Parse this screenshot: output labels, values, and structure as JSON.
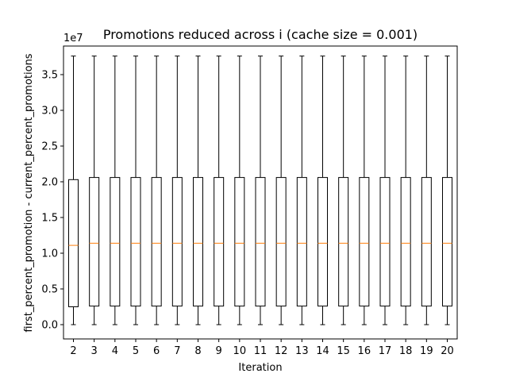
{
  "chart_data": {
    "type": "box",
    "title": "Promotions reduced across i (cache size = 0.001)",
    "xlabel": "Iteration",
    "ylabel": "first_percent_promotion - current_percent_promotions",
    "y_offset_label": "1e7",
    "ylim": [
      -0.2,
      3.9
    ],
    "yticks": [
      0.0,
      0.5,
      1.0,
      1.5,
      2.0,
      2.5,
      3.0,
      3.5
    ],
    "ytick_labels": [
      "0.0",
      "0.5",
      "1.0",
      "1.5",
      "2.0",
      "2.5",
      "3.0",
      "3.5"
    ],
    "grid": false,
    "median_color": "#ff7f0e",
    "box_color": "#000000",
    "categories": [
      "2",
      "3",
      "4",
      "5",
      "6",
      "7",
      "8",
      "9",
      "10",
      "11",
      "12",
      "13",
      "14",
      "15",
      "16",
      "17",
      "18",
      "19",
      "20"
    ],
    "boxes": [
      {
        "x": "2",
        "whisker_low": 0.0,
        "q1": 0.25,
        "median": 1.11,
        "q3": 2.03,
        "whisker_high": 3.76
      },
      {
        "x": "3",
        "whisker_low": 0.0,
        "q1": 0.26,
        "median": 1.14,
        "q3": 2.06,
        "whisker_high": 3.76
      },
      {
        "x": "4",
        "whisker_low": 0.0,
        "q1": 0.26,
        "median": 1.14,
        "q3": 2.06,
        "whisker_high": 3.76
      },
      {
        "x": "5",
        "whisker_low": 0.0,
        "q1": 0.26,
        "median": 1.14,
        "q3": 2.06,
        "whisker_high": 3.76
      },
      {
        "x": "6",
        "whisker_low": 0.0,
        "q1": 0.26,
        "median": 1.14,
        "q3": 2.06,
        "whisker_high": 3.76
      },
      {
        "x": "7",
        "whisker_low": 0.0,
        "q1": 0.26,
        "median": 1.14,
        "q3": 2.06,
        "whisker_high": 3.76
      },
      {
        "x": "8",
        "whisker_low": 0.0,
        "q1": 0.26,
        "median": 1.14,
        "q3": 2.06,
        "whisker_high": 3.76
      },
      {
        "x": "9",
        "whisker_low": 0.0,
        "q1": 0.26,
        "median": 1.14,
        "q3": 2.06,
        "whisker_high": 3.76
      },
      {
        "x": "10",
        "whisker_low": 0.0,
        "q1": 0.26,
        "median": 1.14,
        "q3": 2.06,
        "whisker_high": 3.76
      },
      {
        "x": "11",
        "whisker_low": 0.0,
        "q1": 0.26,
        "median": 1.14,
        "q3": 2.06,
        "whisker_high": 3.76
      },
      {
        "x": "12",
        "whisker_low": 0.0,
        "q1": 0.26,
        "median": 1.14,
        "q3": 2.06,
        "whisker_high": 3.76
      },
      {
        "x": "13",
        "whisker_low": 0.0,
        "q1": 0.26,
        "median": 1.14,
        "q3": 2.06,
        "whisker_high": 3.76
      },
      {
        "x": "14",
        "whisker_low": 0.0,
        "q1": 0.26,
        "median": 1.14,
        "q3": 2.06,
        "whisker_high": 3.76
      },
      {
        "x": "15",
        "whisker_low": 0.0,
        "q1": 0.26,
        "median": 1.14,
        "q3": 2.06,
        "whisker_high": 3.76
      },
      {
        "x": "16",
        "whisker_low": 0.0,
        "q1": 0.26,
        "median": 1.14,
        "q3": 2.06,
        "whisker_high": 3.76
      },
      {
        "x": "17",
        "whisker_low": 0.0,
        "q1": 0.26,
        "median": 1.14,
        "q3": 2.06,
        "whisker_high": 3.76
      },
      {
        "x": "18",
        "whisker_low": 0.0,
        "q1": 0.26,
        "median": 1.14,
        "q3": 2.06,
        "whisker_high": 3.76
      },
      {
        "x": "19",
        "whisker_low": 0.0,
        "q1": 0.26,
        "median": 1.14,
        "q3": 2.06,
        "whisker_high": 3.76
      },
      {
        "x": "20",
        "whisker_low": 0.0,
        "q1": 0.26,
        "median": 1.14,
        "q3": 2.06,
        "whisker_high": 3.76
      }
    ]
  }
}
